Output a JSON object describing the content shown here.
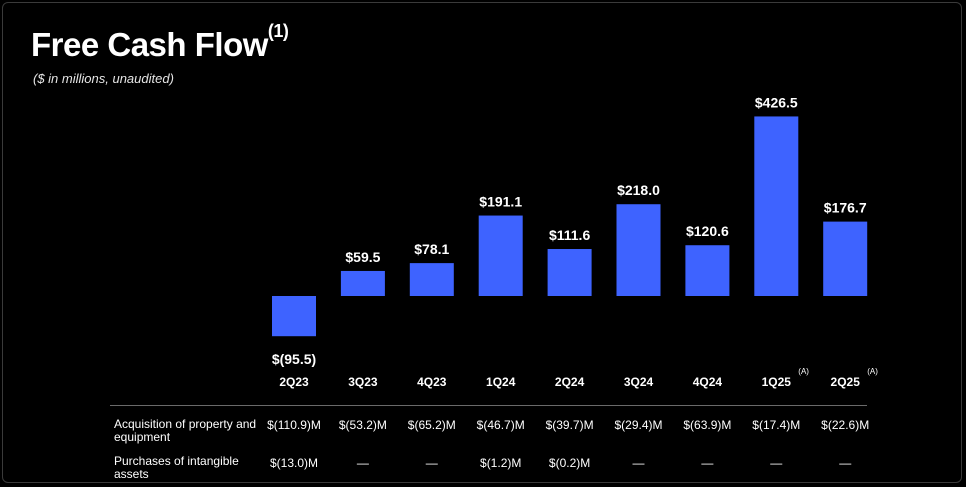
{
  "header": {
    "title": "Free Cash Flow",
    "title_superscript": "(1)",
    "subtitle": "($ in millions, unaudited)"
  },
  "colors": {
    "bar": "#3e63ff",
    "background": "#000000",
    "text": "#ffffff"
  },
  "chart_data": {
    "type": "bar",
    "title": "Free Cash Flow",
    "subtitle": "($ in millions, unaudited)",
    "categories": [
      "2Q23",
      "3Q23",
      "4Q23",
      "1Q24",
      "2Q24",
      "3Q24",
      "4Q24",
      "1Q25",
      "2Q25"
    ],
    "category_notes": [
      "",
      "",
      "",
      "",
      "",
      "",
      "",
      "(A)",
      "(A)"
    ],
    "values": [
      -95.5,
      59.5,
      78.1,
      191.1,
      111.6,
      218.0,
      120.6,
      426.5,
      176.7
    ],
    "data_labels": [
      "$(95.5)",
      "$59.5",
      "$78.1",
      "$191.1",
      "$111.6",
      "$218.0",
      "$120.6",
      "$426.5",
      "$176.7"
    ],
    "xlabel": "",
    "ylabel": "",
    "ylim": [
      -100,
      430
    ],
    "grid": false,
    "legend": "none"
  },
  "table": {
    "rows": [
      {
        "label": "Acquisition of property and equipment",
        "values": [
          "$(110.9)M",
          "$(53.2)M",
          "$(65.2)M",
          "$(46.7)M",
          "$(39.7)M",
          "$(29.4)M",
          "$(63.9)M",
          "$(17.4)M",
          "$(22.6)M"
        ]
      },
      {
        "label": "Purchases of intangible assets",
        "values": [
          "$(13.0)M",
          "—",
          "—",
          "$(1.2)M",
          "$(0.2)M",
          "—",
          "—",
          "—",
          "—"
        ]
      }
    ]
  }
}
